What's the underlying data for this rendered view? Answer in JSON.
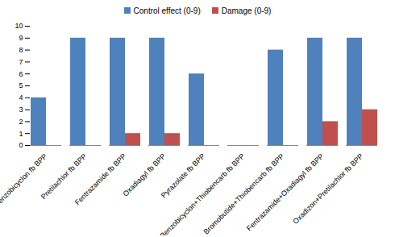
{
  "chart_data": {
    "type": "bar",
    "categories": [
      "Benzobicyclon fb BPP",
      "Pretilachlor fb BPP",
      "Fentrazamide fb BPP",
      "Oxadiagyl fb BPP",
      "Pyrazolate fb BPP",
      "Benzobicyclon+Thiobencarb fb BPP",
      "Bromobutide+Thiobencarb fb BPP",
      "Fentrazamide+Oxadiagyl fb BPP",
      "Oxadizon+Pretilachlor fb BPP"
    ],
    "series": [
      {
        "name": "Control effect (0-9)",
        "color": "#4f81bd",
        "values": [
          4,
          9,
          9,
          9,
          6,
          0,
          8,
          9,
          9
        ]
      },
      {
        "name": "Damage (0-9)",
        "color": "#c0504d",
        "values": [
          0,
          0,
          1,
          1,
          0,
          0,
          0,
          2,
          3
        ]
      }
    ],
    "ylim": [
      0,
      10
    ],
    "yticks": [
      0,
      1,
      2,
      3,
      4,
      5,
      6,
      7,
      8,
      9,
      10
    ],
    "grid": false,
    "legend": "top"
  }
}
